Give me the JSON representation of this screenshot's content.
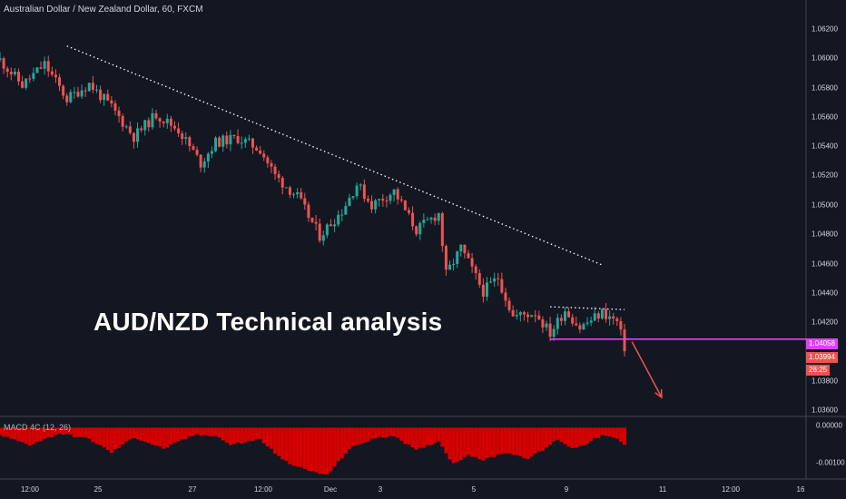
{
  "header": {
    "symbol_title": "Australian Dollar / New Zealand Dollar, 60, FXCM",
    "macd_title": "MACD 4C (12, 26)"
  },
  "annotation": {
    "headline": "AUD/NZD Technical analysis"
  },
  "price_axis": {
    "ticks": [
      "1.06200",
      "1.06000",
      "1.05800",
      "1.05600",
      "1.05400",
      "1.05200",
      "1.05000",
      "1.04800",
      "1.04600",
      "1.04400",
      "1.04200",
      "1.03800",
      "1.03600"
    ],
    "level_label": "1.04058",
    "last_price_label": "1.03994",
    "countdown_label": "28:25"
  },
  "macd_axis": {
    "ticks": [
      "0.00000",
      "-0.00100"
    ]
  },
  "time_axis": {
    "ticks": [
      "12:00",
      "25",
      "27",
      "12:00",
      "Dec",
      "3",
      "5",
      "9",
      "11",
      "12:00",
      "16"
    ]
  },
  "colors": {
    "background": "#131722",
    "up_candle": "#26a69a",
    "down_candle": "#ef5350",
    "support_line": "#e040fb",
    "trendline": "#ffffff",
    "projection_arrow": "#ef5350",
    "macd_bar": "#d50000"
  },
  "chart_data": [
    {
      "type": "candlestick",
      "title": "Australian Dollar / New Zealand Dollar, 60, FXCM",
      "ylim": [
        1.0353,
        1.0636
      ],
      "close_path": [
        [
          0,
          1.0606
        ],
        [
          6,
          1.0588
        ],
        [
          12,
          1.0603
        ],
        [
          18,
          1.0578
        ],
        [
          24,
          1.0589
        ],
        [
          30,
          1.0572
        ],
        [
          36,
          1.0551
        ],
        [
          42,
          1.0567
        ],
        [
          48,
          1.0556
        ],
        [
          54,
          1.0532
        ],
        [
          58,
          1.0547
        ],
        [
          64,
          1.055
        ],
        [
          70,
          1.0542
        ],
        [
          74,
          1.0523
        ],
        [
          80,
          1.0508
        ],
        [
          86,
          1.048
        ],
        [
          92,
          1.0498
        ],
        [
          96,
          1.0517
        ],
        [
          100,
          1.0502
        ],
        [
          106,
          1.0512
        ],
        [
          112,
          1.0484
        ],
        [
          118,
          1.0496
        ],
        [
          120,
          1.0452
        ],
        [
          124,
          1.0471
        ],
        [
          130,
          1.044
        ],
        [
          134,
          1.045
        ],
        [
          138,
          1.0422
        ],
        [
          144,
          1.0425
        ],
        [
          148,
          1.041
        ],
        [
          152,
          1.0427
        ],
        [
          156,
          1.0414
        ],
        [
          162,
          1.0425
        ],
        [
          166,
          1.0418
        ],
        [
          168,
          1.04
        ]
      ],
      "trendline": [
        [
          18,
          1.0616
        ],
        [
          162,
          1.0459
        ]
      ],
      "consolidation_top": [
        [
          148,
          1.0429
        ],
        [
          168,
          1.0427
        ]
      ],
      "support_level": 1.04058,
      "last_price": 1.03994,
      "projection": [
        [
          170,
          1.0404
        ],
        [
          178,
          1.0364
        ]
      ]
    },
    {
      "type": "bar",
      "title": "MACD 4C (12, 26)",
      "ylim": [
        -0.0013,
        0.0002
      ],
      "histogram": [
        [
          0,
          -0.0002
        ],
        [
          8,
          -0.00045
        ],
        [
          16,
          -0.00015
        ],
        [
          24,
          -0.0003
        ],
        [
          30,
          -0.00065
        ],
        [
          36,
          -0.00025
        ],
        [
          44,
          -0.00055
        ],
        [
          52,
          -0.0002
        ],
        [
          58,
          -0.0002
        ],
        [
          62,
          -0.00045
        ],
        [
          70,
          -0.0003
        ],
        [
          76,
          -0.00085
        ],
        [
          82,
          -0.0011
        ],
        [
          88,
          -0.00125
        ],
        [
          94,
          -0.00055
        ],
        [
          100,
          -0.0003
        ],
        [
          106,
          -0.0002
        ],
        [
          112,
          -0.0006
        ],
        [
          118,
          -0.00035
        ],
        [
          122,
          -0.00095
        ],
        [
          126,
          -0.0007
        ],
        [
          130,
          -0.00085
        ],
        [
          136,
          -0.00065
        ],
        [
          142,
          -0.0008
        ],
        [
          146,
          -0.0006
        ],
        [
          150,
          -0.0003
        ],
        [
          154,
          -0.00055
        ],
        [
          158,
          -0.0004
        ],
        [
          162,
          -0.0002
        ],
        [
          166,
          -0.0003
        ],
        [
          168,
          -0.00045
        ]
      ]
    }
  ]
}
